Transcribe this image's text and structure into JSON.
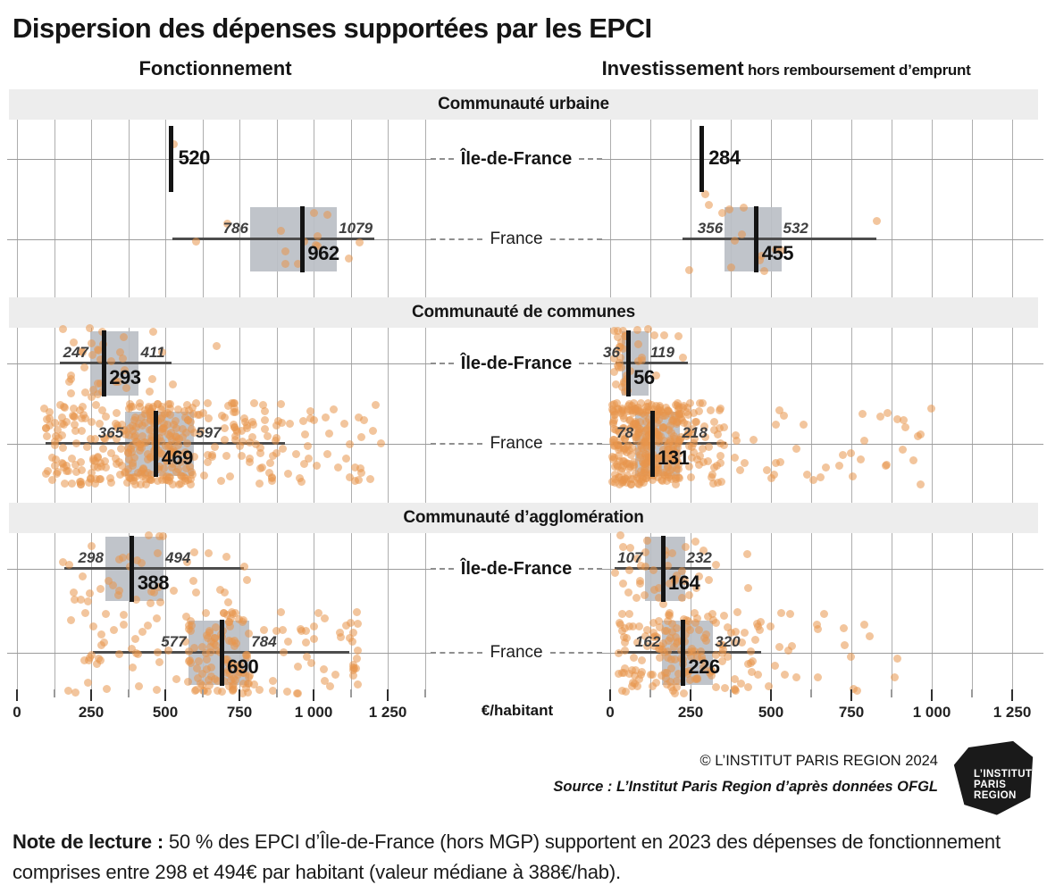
{
  "title": "Dispersion des dépenses supportées par les EPCI",
  "columns": {
    "left": "Fonctionnement",
    "right": "Investissement",
    "right_suffix": " hors remboursement d’emprunt"
  },
  "axis": {
    "unit_label": "€/habitant",
    "tick_values": [
      0,
      250,
      500,
      750,
      1000,
      1250
    ],
    "tick_labels": [
      "0",
      "250",
      "500",
      "750",
      "1 000",
      "1 250"
    ],
    "minor_step": 125,
    "max_value": 1250
  },
  "colors": {
    "band_bg": "#ededed",
    "grid": "#aeaeae",
    "row_line": "#9b9b9b",
    "box": "rgba(187,191,198,0.93)",
    "whisker": "#4d4d4d",
    "median": "#141414",
    "dot": "rgba(231,150,77,0.55)"
  },
  "credits": {
    "copyright": "© L’INSTITUT PARIS REGION 2024",
    "source": "Source : L’Institut Paris Region d’après données OFGL",
    "logo_lines": [
      "L’INSTITUT",
      "PARIS",
      "REGION"
    ]
  },
  "note": {
    "label": "Note de lecture :",
    "text": " 50 % des EPCI d’Île-de-France (hors MGP) supportent en 2023 des dépenses de fonctionnement comprises entre 298 et 494€ par habitant (valeur médiane à 388€/hab)."
  },
  "chart_data": {
    "type": "boxplot",
    "unit": "€/habitant",
    "measures": [
      "fonctionnement",
      "investissement"
    ],
    "sections": [
      {
        "title": "Communauté urbaine",
        "rows": [
          {
            "label": "Île-de-France",
            "bold": true,
            "measures": {
              "fonctionnement": {
                "median_only": true,
                "median": 520,
                "points": [
                  [
                    529,
                    -17
                  ]
                ]
              },
              "investissement": {
                "median_only": true,
                "median": 284,
                "points": [
                  [
                    296,
                    39
                  ]
                ]
              }
            }
          },
          {
            "label": "France",
            "bold": false,
            "measures": {
              "fonctionnement": {
                "q1": 786,
                "median": 962,
                "q3": 1079,
                "whisker_min": 525,
                "whisker_max": 1205,
                "n_points": 14,
                "dot_min": 520,
                "dot_max": 1195,
                "seed": 11
              },
              "investissement": {
                "q1": 356,
                "median": 455,
                "q3": 532,
                "whisker_min": 225,
                "whisker_max": 828,
                "n_points": 14,
                "dot_min": 230,
                "dot_max": 830,
                "seed": 12
              }
            }
          }
        ]
      },
      {
        "title": "Communauté de communes",
        "rows": [
          {
            "label": "Île-de-France",
            "bold": true,
            "measures": {
              "fonctionnement": {
                "q1": 247,
                "median": 293,
                "q3": 411,
                "whisker_min": 145,
                "whisker_max": 520,
                "n_points": 38,
                "dot_min": 140,
                "dot_max": 760,
                "seed": 21
              },
              "investissement": {
                "q1": 36,
                "median": 56,
                "q3": 119,
                "whisker_min": 18,
                "whisker_max": 243,
                "n_points": 38,
                "dot_min": 12,
                "dot_max": 450,
                "seed": 22
              }
            }
          },
          {
            "label": "France",
            "bold": false,
            "measures": {
              "fonctionnement": {
                "q1": 365,
                "median": 469,
                "q3": 597,
                "whisker_min": 95,
                "whisker_max": 905,
                "n_points": 420,
                "dot_min": 90,
                "dot_max": 1230,
                "seed": 23
              },
              "investissement": {
                "q1": 78,
                "median": 131,
                "q3": 218,
                "whisker_min": 8,
                "whisker_max": 360,
                "n_points": 420,
                "dot_min": 5,
                "dot_max": 1000,
                "seed": 24
              }
            }
          }
        ]
      },
      {
        "title": "Communauté d’agglomération",
        "rows": [
          {
            "label": "Île-de-France",
            "bold": true,
            "measures": {
              "fonctionnement": {
                "q1": 298,
                "median": 388,
                "q3": 494,
                "whisker_min": 160,
                "whisker_max": 765,
                "n_points": 42,
                "dot_min": 150,
                "dot_max": 790,
                "seed": 31
              },
              "investissement": {
                "q1": 107,
                "median": 164,
                "q3": 232,
                "whisker_min": 15,
                "whisker_max": 315,
                "n_points": 42,
                "dot_min": 12,
                "dot_max": 455,
                "seed": 32
              }
            }
          },
          {
            "label": "France",
            "bold": false,
            "measures": {
              "fonctionnement": {
                "q1": 577,
                "median": 690,
                "q3": 784,
                "whisker_min": 255,
                "whisker_max": 1120,
                "n_points": 190,
                "dot_min": 145,
                "dot_max": 1150,
                "seed": 33
              },
              "investissement": {
                "q1": 162,
                "median": 226,
                "q3": 320,
                "whisker_min": 22,
                "whisker_max": 470,
                "n_points": 190,
                "dot_min": 18,
                "dot_max": 900,
                "seed": 34
              }
            }
          }
        ]
      }
    ]
  }
}
